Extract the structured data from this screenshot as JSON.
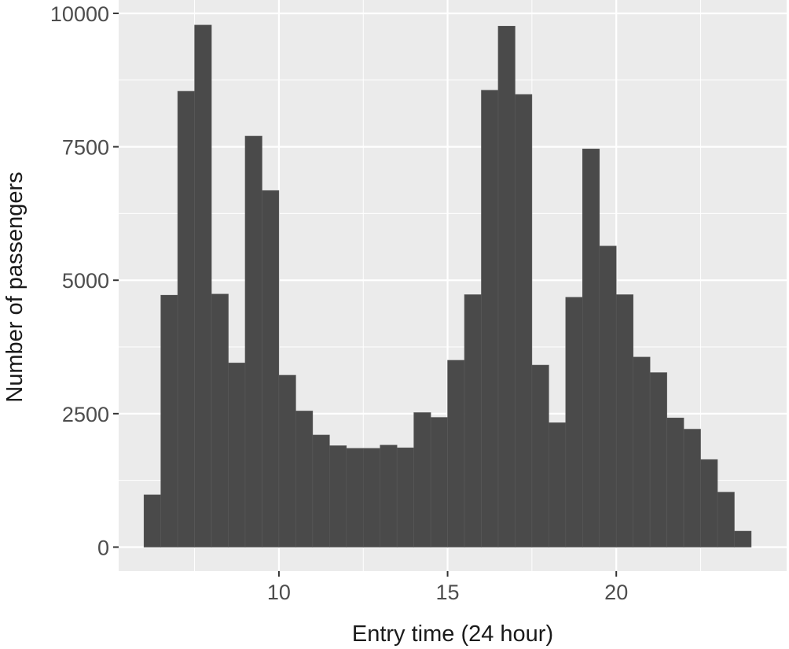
{
  "chart_data": {
    "type": "bar",
    "subtype": "histogram",
    "xlabel": "Entry time (24 hour)",
    "ylabel": "Number of passengers",
    "xlim": [
      5.25,
      25.05
    ],
    "ylim": [
      -450,
      10250
    ],
    "x_ticks": [
      10,
      15,
      20
    ],
    "y_ticks": [
      0,
      2500,
      5000,
      7500,
      10000
    ],
    "x_minor_gridlines": [
      7.5,
      12.5,
      17.5,
      22.5
    ],
    "y_minor_gridlines": [
      1250,
      3750,
      6250,
      8750
    ],
    "grid": true,
    "legend": "none",
    "bin_width": 0.5,
    "bins": [
      {
        "start": 6.0,
        "end": 6.5,
        "count": 980
      },
      {
        "start": 6.5,
        "end": 7.0,
        "count": 4720
      },
      {
        "start": 7.0,
        "end": 7.5,
        "count": 8540
      },
      {
        "start": 7.5,
        "end": 8.0,
        "count": 9780
      },
      {
        "start": 8.0,
        "end": 8.5,
        "count": 4740
      },
      {
        "start": 8.5,
        "end": 9.0,
        "count": 3450
      },
      {
        "start": 9.0,
        "end": 9.5,
        "count": 7700
      },
      {
        "start": 9.5,
        "end": 10.0,
        "count": 6680
      },
      {
        "start": 10.0,
        "end": 10.5,
        "count": 3220
      },
      {
        "start": 10.5,
        "end": 11.0,
        "count": 2550
      },
      {
        "start": 11.0,
        "end": 11.5,
        "count": 2100
      },
      {
        "start": 11.5,
        "end": 12.0,
        "count": 1900
      },
      {
        "start": 12.0,
        "end": 12.5,
        "count": 1850
      },
      {
        "start": 12.5,
        "end": 13.0,
        "count": 1850
      },
      {
        "start": 13.0,
        "end": 13.5,
        "count": 1910
      },
      {
        "start": 13.5,
        "end": 14.0,
        "count": 1860
      },
      {
        "start": 14.0,
        "end": 14.5,
        "count": 2520
      },
      {
        "start": 14.5,
        "end": 15.0,
        "count": 2430
      },
      {
        "start": 15.0,
        "end": 15.5,
        "count": 3500
      },
      {
        "start": 15.5,
        "end": 16.0,
        "count": 4730
      },
      {
        "start": 16.0,
        "end": 16.5,
        "count": 8560
      },
      {
        "start": 16.5,
        "end": 17.0,
        "count": 9760
      },
      {
        "start": 17.0,
        "end": 17.5,
        "count": 8480
      },
      {
        "start": 17.5,
        "end": 18.0,
        "count": 3410
      },
      {
        "start": 18.0,
        "end": 18.5,
        "count": 2330
      },
      {
        "start": 18.5,
        "end": 19.0,
        "count": 4680
      },
      {
        "start": 19.0,
        "end": 19.5,
        "count": 7460
      },
      {
        "start": 19.5,
        "end": 20.0,
        "count": 5640
      },
      {
        "start": 20.0,
        "end": 20.5,
        "count": 4730
      },
      {
        "start": 20.5,
        "end": 21.0,
        "count": 3560
      },
      {
        "start": 21.0,
        "end": 21.5,
        "count": 3270
      },
      {
        "start": 21.5,
        "end": 22.0,
        "count": 2420
      },
      {
        "start": 22.0,
        "end": 22.5,
        "count": 2210
      },
      {
        "start": 22.5,
        "end": 23.0,
        "count": 1640
      },
      {
        "start": 23.0,
        "end": 23.5,
        "count": 1030
      },
      {
        "start": 23.5,
        "end": 24.0,
        "count": 300
      }
    ],
    "colors": {
      "panel_background": "#ebebeb",
      "gridline": "#ffffff",
      "bar_fill": "#4a4a4a",
      "bar_border": "#5a5a5a",
      "tick_mark": "#333333",
      "tick_label": "#4d4d4d",
      "axis_title": "#1a1a1a"
    }
  }
}
